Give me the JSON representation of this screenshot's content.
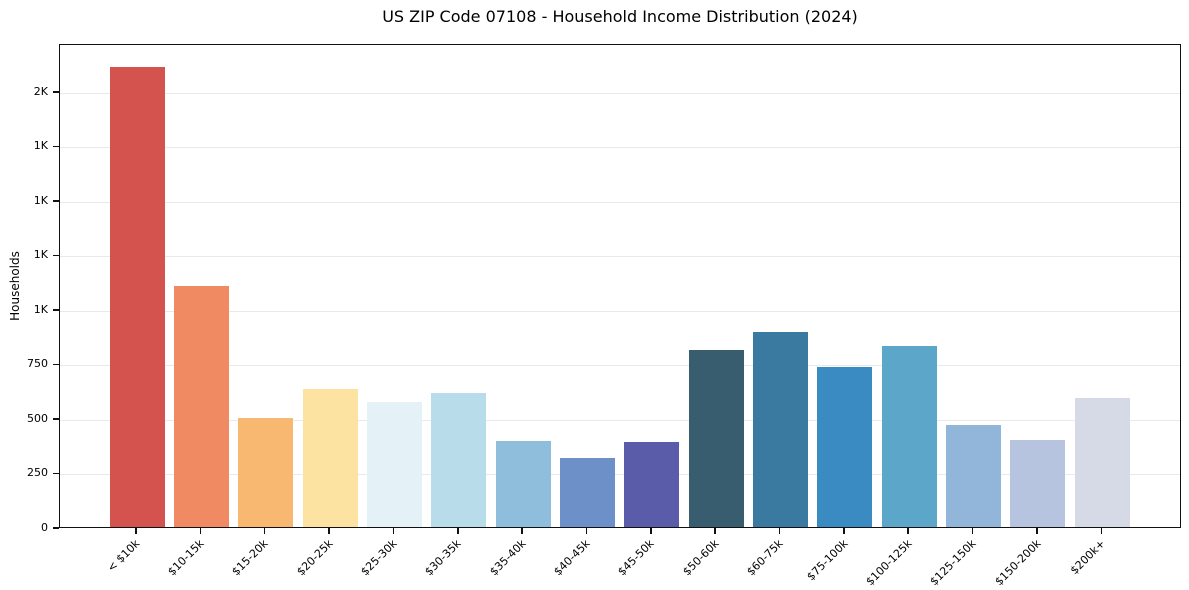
{
  "chart_data": {
    "type": "bar",
    "title": "US ZIP Code 07108 - Household Income Distribution (2024)",
    "xlabel": "",
    "ylabel": "Households",
    "categories": [
      "< $10k",
      "$10-15k",
      "$15-20k",
      "$20-25k",
      "$25-30k",
      "$30-35k",
      "$35-40k",
      "$40-45k",
      "$45-50k",
      "$50-60k",
      "$60-75k",
      "$75-100k",
      "$100-125k",
      "$125-150k",
      "$150-200k",
      "$200k+"
    ],
    "values": [
      2110,
      1105,
      500,
      635,
      575,
      615,
      395,
      315,
      390,
      810,
      895,
      735,
      830,
      470,
      400,
      590
    ],
    "bar_colors": [
      "#d5534e",
      "#f08a63",
      "#f9b871",
      "#fce3a1",
      "#e4f1f7",
      "#b8dcea",
      "#8fbedd",
      "#6c90c7",
      "#5a5caa",
      "#375d6e",
      "#3a7aa0",
      "#398bc1",
      "#5ca6c9",
      "#92b6d9",
      "#b6c4df",
      "#d6dae7"
    ],
    "ylim": [
      0,
      2220
    ],
    "yticks": [
      {
        "value": 0,
        "label": "0"
      },
      {
        "value": 250,
        "label": "250"
      },
      {
        "value": 500,
        "label": "500"
      },
      {
        "value": 750,
        "label": "750"
      },
      {
        "value": 1000,
        "label": "1K"
      },
      {
        "value": 1250,
        "label": "1K"
      },
      {
        "value": 1500,
        "label": "1K"
      },
      {
        "value": 1750,
        "label": "1K"
      },
      {
        "value": 2000,
        "label": "2K"
      }
    ],
    "grid": "horizontal",
    "legend": "none",
    "colors": {
      "background": "#ffffff",
      "grid_color": "#e9e9e9",
      "spine_color": "#111111",
      "text_color": "#000000"
    }
  }
}
